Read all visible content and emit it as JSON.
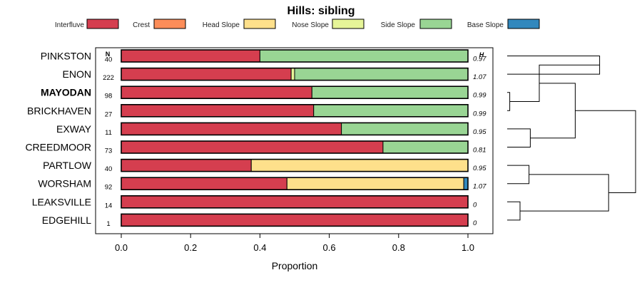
{
  "chart_data": {
    "type": "bar",
    "orientation": "horizontal",
    "stacked": true,
    "title": "Hills: sibling",
    "xlabel": "Proportion",
    "ylabel": "",
    "xlim": [
      0,
      1
    ],
    "xticks": [
      0.0,
      0.2,
      0.4,
      0.6,
      0.8,
      1.0
    ],
    "xtick_labels": [
      "0.0",
      "0.2",
      "0.4",
      "0.6",
      "0.8",
      "1.0"
    ],
    "n_header": "N",
    "h_header": "H",
    "highlighted_series": "MAYODAN",
    "legend": [
      {
        "name": "Interfluve",
        "color": "#d53e4f"
      },
      {
        "name": "Crest",
        "color": "#fc8d59"
      },
      {
        "name": "Head Slope",
        "color": "#fee08b"
      },
      {
        "name": "Nose Slope",
        "color": "#e6f598"
      },
      {
        "name": "Side Slope",
        "color": "#99d594"
      },
      {
        "name": "Base Slope",
        "color": "#3288bd"
      }
    ],
    "categories": [
      {
        "name": "PINKSTON",
        "n": "40",
        "h": "0.97",
        "values": [
          0.4,
          0,
          0,
          0,
          0.6,
          0
        ]
      },
      {
        "name": "ENON",
        "n": "222",
        "h": "1.07",
        "values": [
          0.49,
          0,
          0,
          0.01,
          0.5,
          0
        ]
      },
      {
        "name": "MAYODAN",
        "n": "98",
        "h": "0.99",
        "values": [
          0.55,
          0,
          0,
          0,
          0.45,
          0
        ]
      },
      {
        "name": "BRICKHAVEN",
        "n": "27",
        "h": "0.99",
        "values": [
          0.555,
          0,
          0,
          0,
          0.445,
          0
        ]
      },
      {
        "name": "EXWAY",
        "n": "11",
        "h": "0.95",
        "values": [
          0.635,
          0,
          0,
          0,
          0.365,
          0
        ]
      },
      {
        "name": "CREEDMOOR",
        "n": "73",
        "h": "0.81",
        "values": [
          0.755,
          0,
          0,
          0,
          0.245,
          0
        ]
      },
      {
        "name": "PARTLOW",
        "n": "40",
        "h": "0.95",
        "values": [
          0.375,
          0,
          0.625,
          0,
          0,
          0
        ]
      },
      {
        "name": "WORSHAM",
        "n": "92",
        "h": "1.07",
        "values": [
          0.478,
          0,
          0.51,
          0,
          0,
          0.012
        ]
      },
      {
        "name": "LEAKSVILLE",
        "n": "14",
        "h": "0",
        "values": [
          1.0,
          0,
          0,
          0,
          0,
          0
        ]
      },
      {
        "name": "EDGEHILL",
        "n": "1",
        "h": "0",
        "values": [
          1.0,
          0,
          0,
          0,
          0,
          0
        ]
      }
    ],
    "dendrogram_merges": [
      {
        "left": "leaf:PINKSTON",
        "right": "leaf:ENON",
        "height": 0.72
      },
      {
        "left": "leaf:MAYODAN",
        "right": "leaf:BRICKHAVEN",
        "height": 0.02
      },
      {
        "left": "merge:1",
        "right": "merge:0",
        "height": 0.25
      },
      {
        "left": "leaf:EXWAY",
        "right": "leaf:CREEDMOOR",
        "height": 0.18
      },
      {
        "left": "merge:2",
        "right": "merge:3",
        "height": 0.53
      },
      {
        "left": "leaf:PARTLOW",
        "right": "leaf:WORSHAM",
        "height": 0.17
      },
      {
        "left": "leaf:LEAKSVILLE",
        "right": "leaf:EDGEHILL",
        "height": 0.1
      },
      {
        "left": "merge:5",
        "right": "merge:6",
        "height": 0.79
      },
      {
        "left": "merge:4",
        "right": "merge:7",
        "height": 1.0
      }
    ]
  }
}
